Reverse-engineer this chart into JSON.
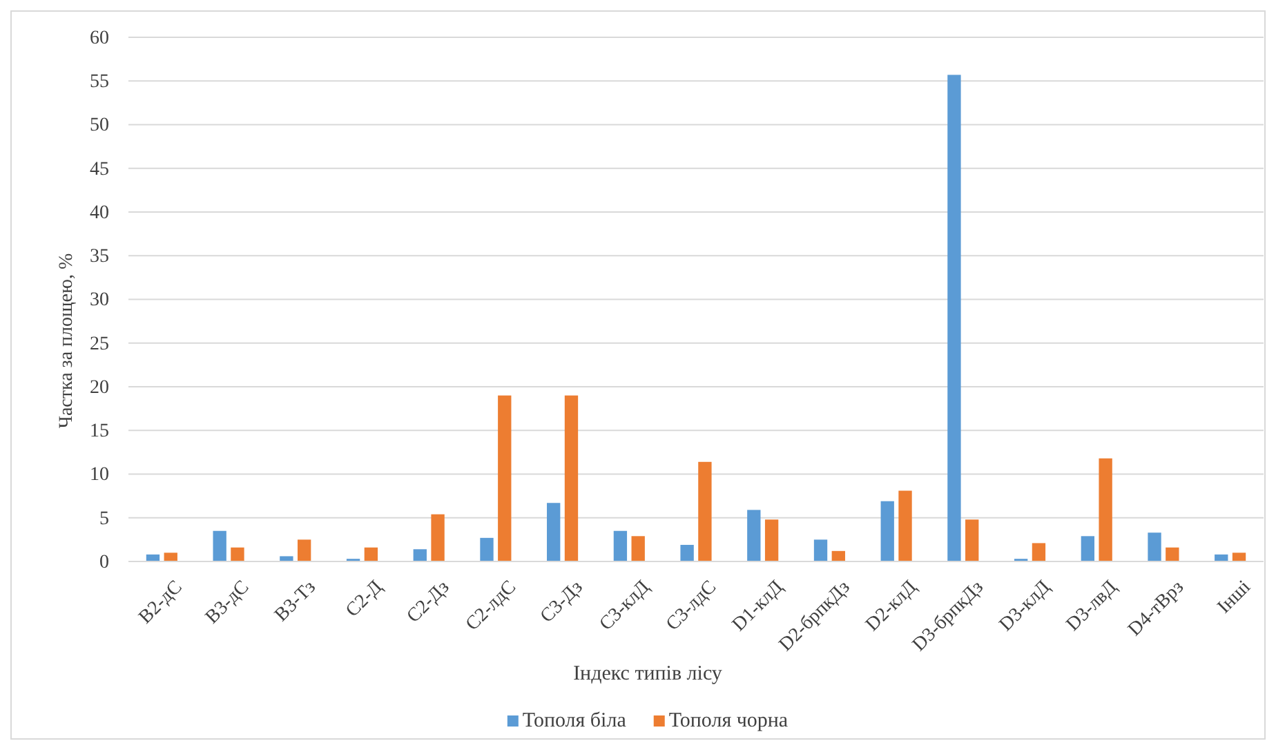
{
  "chart_data": {
    "type": "bar",
    "categories": [
      "B2-дС",
      "B3-дС",
      "B3-Тз",
      "C2-Д",
      "C2-Дз",
      "C2-лдС",
      "C3-Дз",
      "C3-клД",
      "C3-лдС",
      "D1-клД",
      "D2-брпкДз",
      "D2-клД",
      "D3-брпкДз",
      "D3-клД",
      "D3-лвД",
      "D4-тВрз",
      "Інші"
    ],
    "series": [
      {
        "name": "Тополя біла",
        "color": "#5b9bd5",
        "values": [
          0.8,
          3.5,
          0.6,
          0.3,
          1.4,
          2.7,
          6.7,
          3.5,
          1.9,
          5.9,
          2.5,
          6.9,
          55.7,
          0.3,
          2.9,
          3.3,
          0.8
        ]
      },
      {
        "name": "Тополя чорна",
        "color": "#ed7d31",
        "values": [
          1.0,
          1.6,
          2.5,
          1.6,
          5.4,
          19.0,
          19.0,
          2.9,
          11.4,
          4.8,
          1.2,
          8.1,
          4.8,
          2.1,
          11.8,
          1.6,
          1.0
        ]
      }
    ],
    "xlabel": "Індекс типів лісу",
    "ylabel": "Частка за площею, %",
    "ylim": [
      0,
      60
    ],
    "yticks": [
      0,
      5,
      10,
      15,
      20,
      25,
      30,
      35,
      40,
      45,
      50,
      55,
      60
    ],
    "grid": "y",
    "legend": "bottom"
  }
}
